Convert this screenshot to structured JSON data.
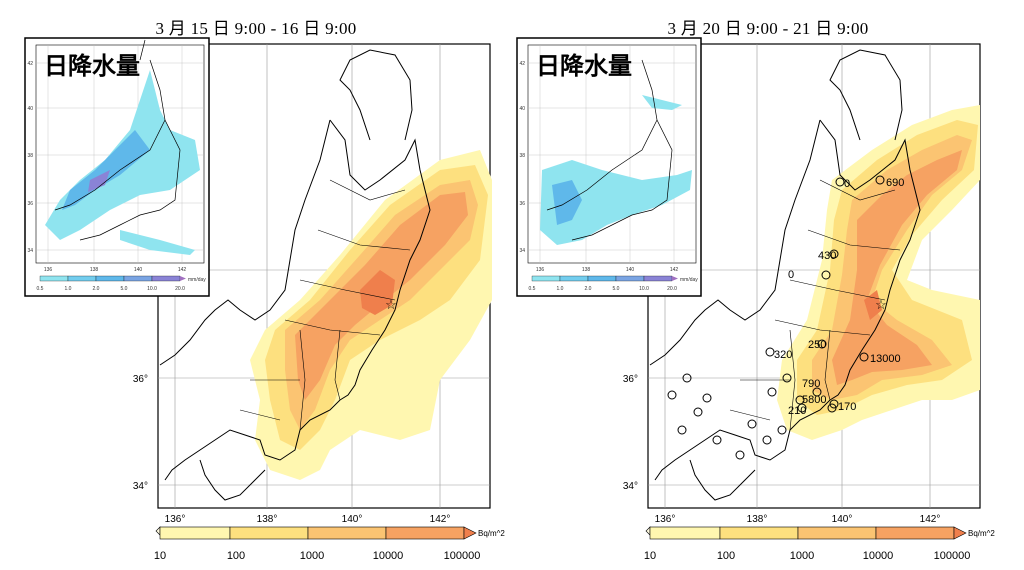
{
  "panels": [
    {
      "title": "3 月 15 日 9:00 - 16 日 9:00",
      "inset": {
        "title": "日降水量",
        "lat_labels": [
          "42",
          "40",
          "38",
          "36",
          "34"
        ],
        "lon_labels": [
          "136",
          "138",
          "140",
          "142"
        ],
        "colorbar_labels": [
          "0.5",
          "1.0",
          "2.0",
          "5.0",
          "10.0",
          "20.0"
        ],
        "unit": "mm/day"
      },
      "lat_labels": [
        "36°",
        "34°"
      ],
      "lon_labels": [
        "136°",
        "138°",
        "140°",
        "142°"
      ],
      "colorbar": {
        "labels": [
          "10",
          "100",
          "1000",
          "10000",
          "100000"
        ],
        "unit": "Bq/m^2"
      },
      "site_labels": []
    },
    {
      "title": "3 月 20 日 9:00 - 21 日 9:00",
      "inset": {
        "title": "日降水量",
        "lat_labels": [
          "42",
          "40",
          "38",
          "36",
          "34"
        ],
        "lon_labels": [
          "136",
          "138",
          "140",
          "142"
        ],
        "colorbar_labels": [
          "0.5",
          "1.0",
          "2.0",
          "5.0",
          "10.0",
          "20.0"
        ],
        "unit": "mm/day"
      },
      "lat_labels": [
        "36°",
        "34°"
      ],
      "lon_labels": [
        "136°",
        "138°",
        "140°",
        "142°"
      ],
      "colorbar": {
        "labels": [
          "10",
          "100",
          "1000",
          "10000",
          "100000"
        ],
        "unit": "Bq/m^2"
      },
      "site_labels": [
        "0",
        "690",
        "430",
        "0",
        "250",
        "320",
        "13000",
        "790",
        "5800",
        "210",
        "170"
      ]
    }
  ],
  "colors": {
    "dep_10": "#fff7b0",
    "dep_100": "#fde07f",
    "dep_1000": "#fbc472",
    "dep_10000": "#f6a262",
    "dep_100000": "#ef7f4c",
    "rain_light": "#8fe4ef",
    "rain_mid": "#5fb8ea",
    "rain_heavy": "#8a83d6"
  }
}
